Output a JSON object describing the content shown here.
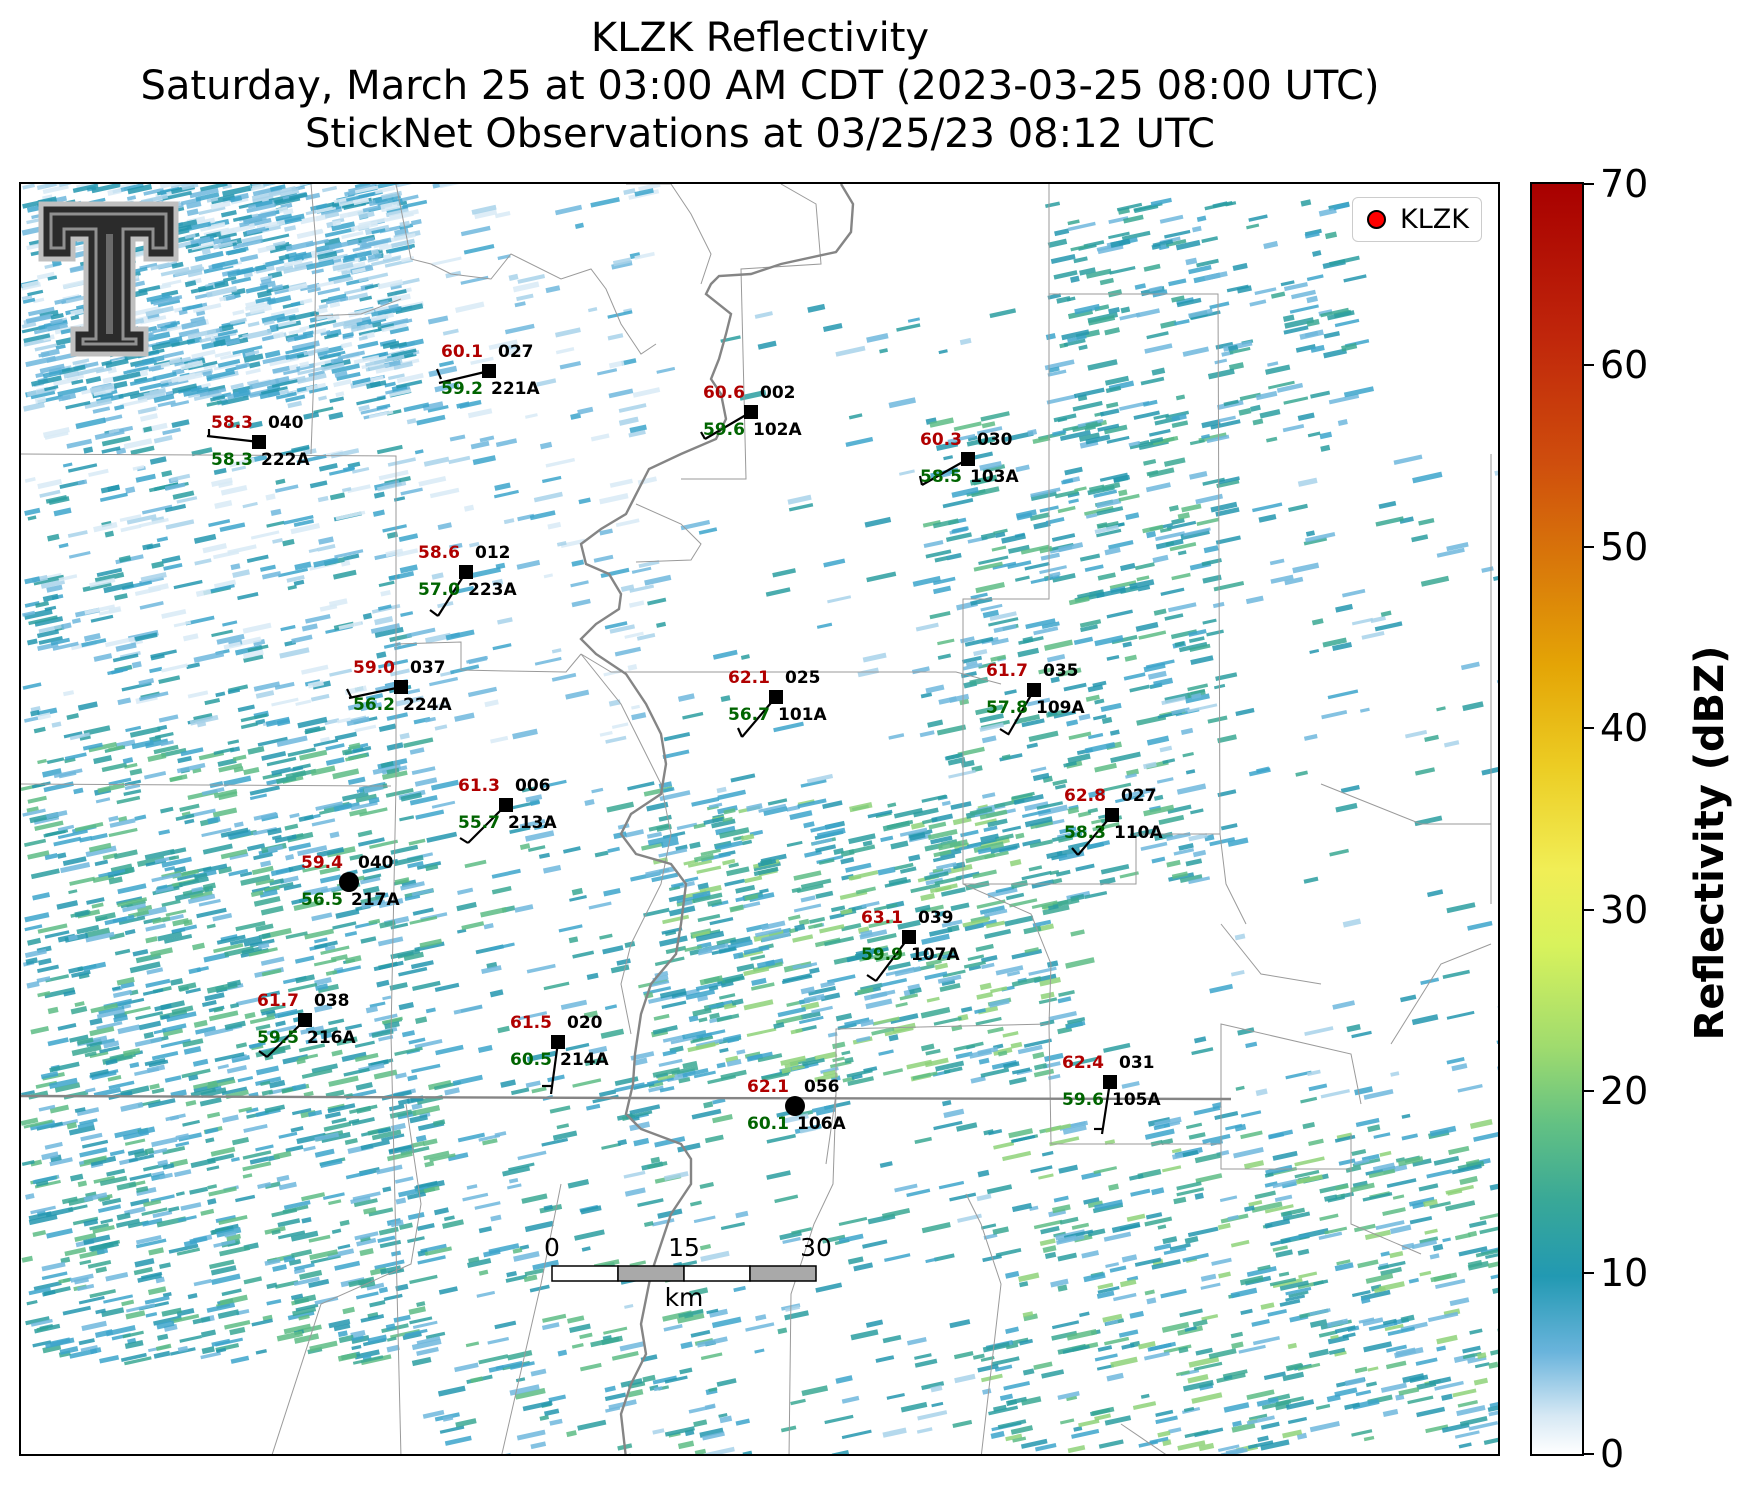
{
  "title_lines": [
    "KLZK Reflectivity",
    "Saturday, March 25 at 03:00 AM CDT (2023-03-25 08:00 UTC)",
    "StickNet Observations at 03/25/23 08:12 UTC"
  ],
  "legend": {
    "label": "KLZK",
    "marker_color": "#ff0000"
  },
  "colorbar": {
    "label": "Reflectivity (dBZ)",
    "min": 0,
    "max": 70,
    "ticks": [
      "0",
      "10",
      "20",
      "30",
      "40",
      "50",
      "60",
      "70"
    ]
  },
  "scale_bar": {
    "ticks": [
      "0",
      "15",
      "30"
    ],
    "unit": "km"
  },
  "colors": {
    "temperature": "#b00000",
    "dewpoint": "#006400",
    "station_id": "#000000",
    "state_border": "#888888",
    "county_line": "#999999"
  },
  "logo": "texas-tech-double-t-logo",
  "stations": [
    {
      "id": "221A",
      "temp": "60.1",
      "dew": "59.2",
      "dir": "027"
    },
    {
      "id": "222A",
      "temp": "58.3",
      "dew": "58.3",
      "dir": "040"
    },
    {
      "id": "102A",
      "temp": "60.6",
      "dew": "59.6",
      "dir": "002"
    },
    {
      "id": "103A",
      "temp": "60.3",
      "dew": "58.5",
      "dir": "030"
    },
    {
      "id": "223A",
      "temp": "58.6",
      "dew": "57.0",
      "dir": "012"
    },
    {
      "id": "224A",
      "temp": "59.0",
      "dew": "56.2",
      "dir": "037"
    },
    {
      "id": "101A",
      "temp": "62.1",
      "dew": "56.7",
      "dir": "025"
    },
    {
      "id": "109A",
      "temp": "61.7",
      "dew": "57.8",
      "dir": "035"
    },
    {
      "id": "213A",
      "temp": "61.3",
      "dew": "55.7",
      "dir": "006"
    },
    {
      "id": "110A",
      "temp": "62.8",
      "dew": "58.3",
      "dir": "027"
    },
    {
      "id": "217A",
      "temp": "59.4",
      "dew": "56.5",
      "dir": "040"
    },
    {
      "id": "107A",
      "temp": "63.1",
      "dew": "59.9",
      "dir": "039"
    },
    {
      "id": "216A",
      "temp": "61.7",
      "dew": "59.5",
      "dir": "038"
    },
    {
      "id": "214A",
      "temp": "61.5",
      "dew": "60.5",
      "dir": "020"
    },
    {
      "id": "106A",
      "temp": "62.1",
      "dew": "60.1",
      "dir": "056"
    },
    {
      "id": "105A",
      "temp": "62.4",
      "dew": "59.6",
      "dir": "031"
    }
  ]
}
